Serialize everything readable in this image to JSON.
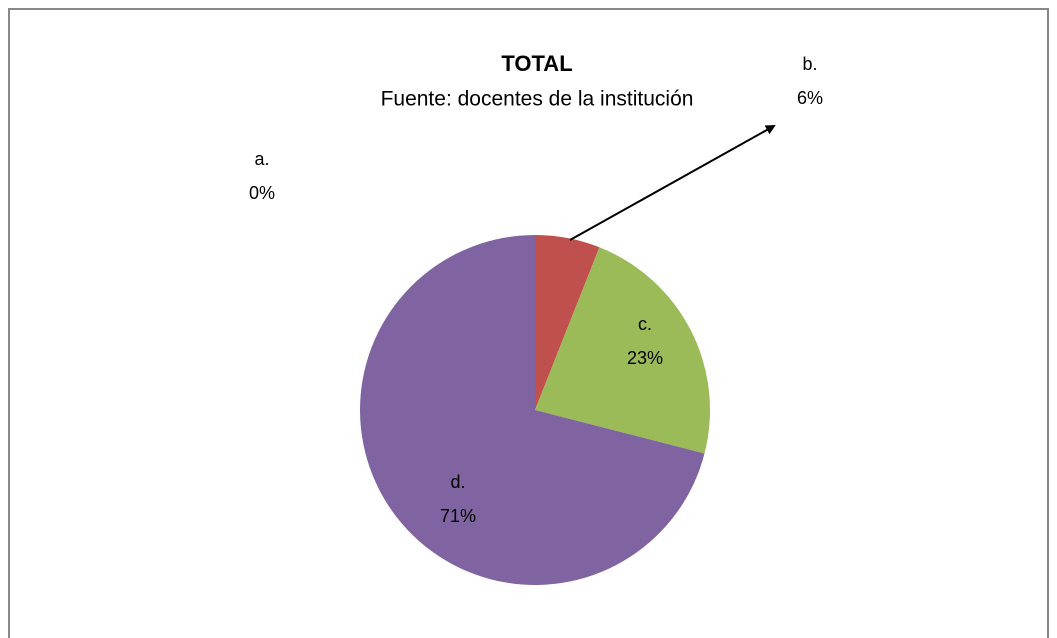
{
  "chart_data": {
    "type": "pie",
    "title": "TOTAL",
    "subtitle": "Fuente: docentes de la institución",
    "categories": [
      "a.",
      "b.",
      "c.",
      "d."
    ],
    "values": [
      0,
      6,
      23,
      71
    ],
    "value_labels": [
      "0%",
      "6%",
      "23%",
      "71%"
    ],
    "colors": [
      "#4f81bd",
      "#c0504d",
      "#9bbb59",
      "#8064a2"
    ]
  }
}
